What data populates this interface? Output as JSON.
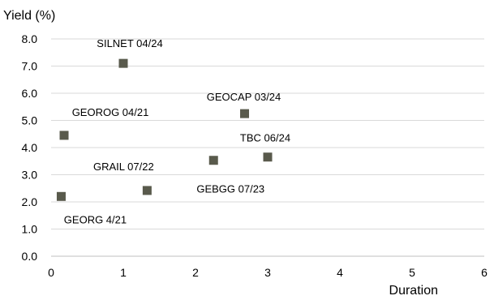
{
  "chart_data": {
    "type": "scatter",
    "title": "",
    "xlabel": "Duration",
    "ylabel": "Yield (%)",
    "xlim": [
      0,
      6
    ],
    "ylim": [
      0.0,
      8.0
    ],
    "x_ticks": [
      "0",
      "1",
      "2",
      "3",
      "4",
      "5",
      "6"
    ],
    "y_ticks": [
      "0.0",
      "1.0",
      "2.0",
      "3.0",
      "4.0",
      "5.0",
      "6.0",
      "7.0",
      "8.0"
    ],
    "grid": "horizontal",
    "marker": "square",
    "marker_color": "#595a4c",
    "points": [
      {
        "label": "SILNET 04/24",
        "x": 1.0,
        "y": 7.1
      },
      {
        "label": "GEOCAP 03/24",
        "x": 2.68,
        "y": 5.25
      },
      {
        "label": "GEOROG 04/21",
        "x": 0.18,
        "y": 4.45
      },
      {
        "label": "TBC 06/24",
        "x": 3.0,
        "y": 3.65
      },
      {
        "label": "GRAIL 07/22",
        "x": 1.33,
        "y": 2.42
      },
      {
        "label": "GEBGG 07/23",
        "x": 2.25,
        "y": 3.53
      },
      {
        "label": "GEORG 4/21",
        "x": 0.14,
        "y": 2.2
      }
    ]
  }
}
